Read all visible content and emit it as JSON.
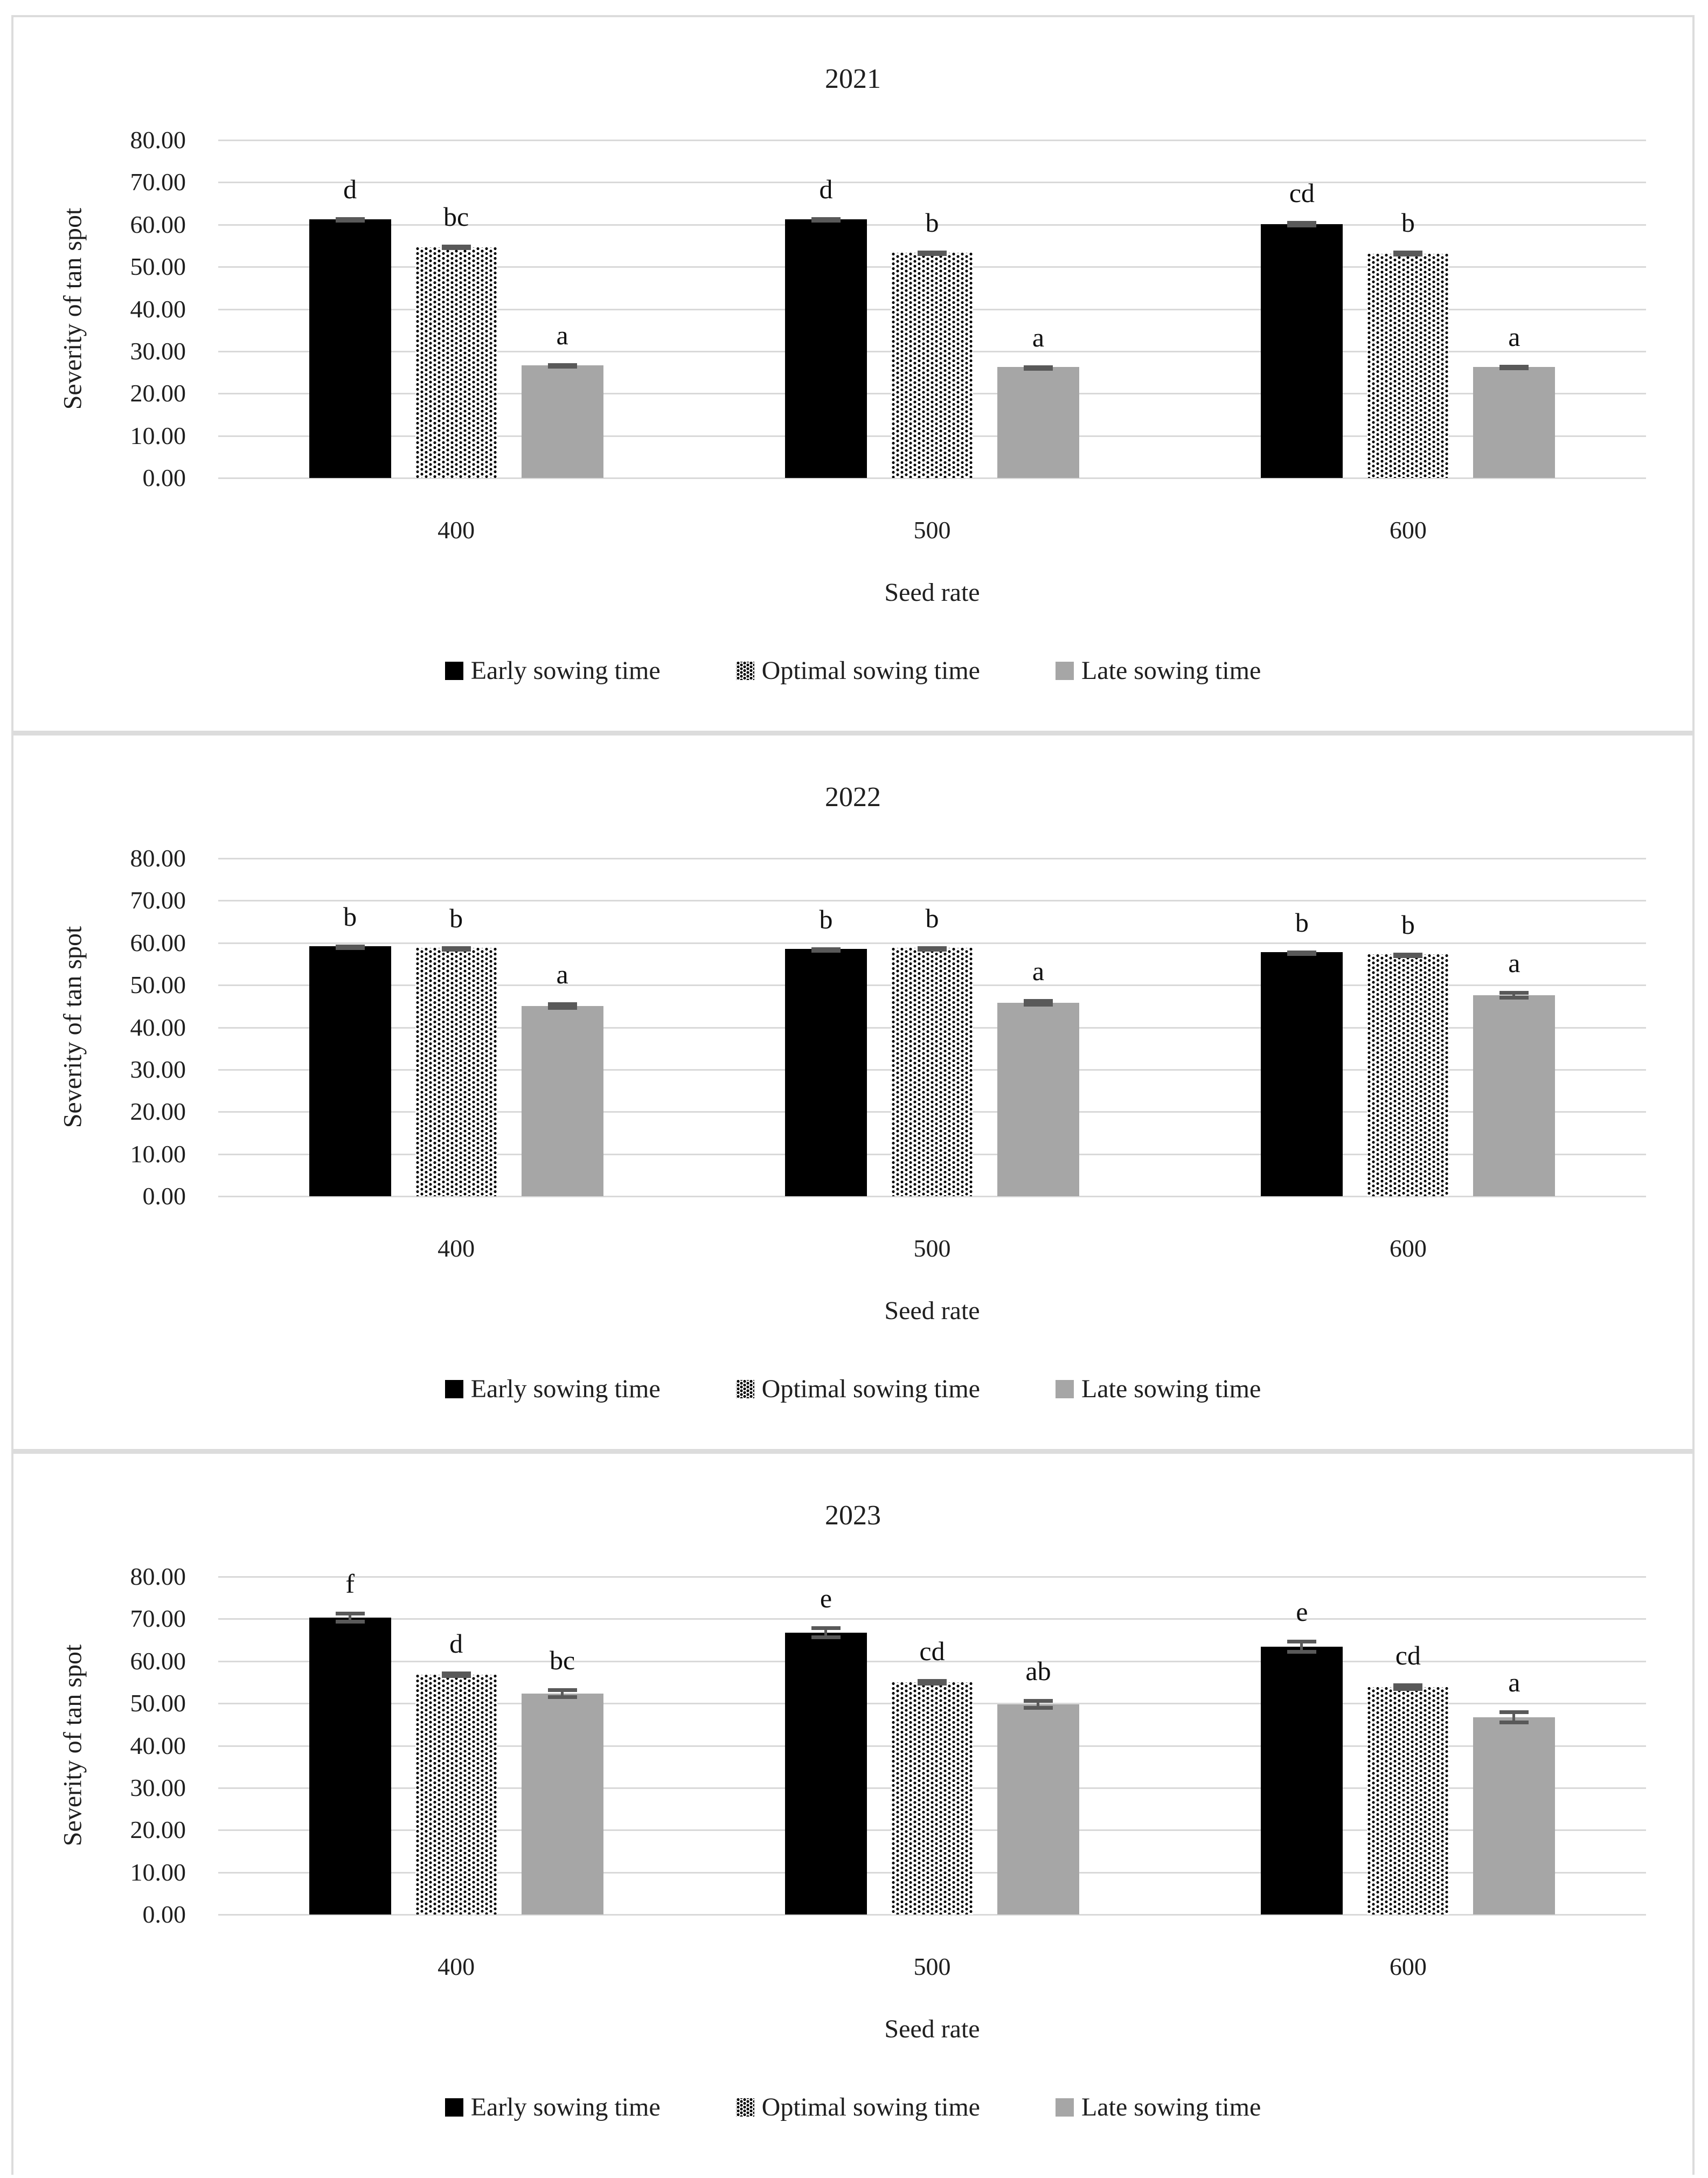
{
  "figure": {
    "background": "#ffffff",
    "border_color": "#dcdcdc",
    "gridline_color": "#d9d9d9",
    "error_bar_color": "#595959",
    "text_color": "#1f1f1f",
    "series_styles": {
      "early": {
        "label": "Early sowing time",
        "fill": "#000000",
        "pattern": "solid"
      },
      "optimal": {
        "label": "Optimal sowing time",
        "fill": "#ffffff",
        "pattern": "black-dots"
      },
      "late": {
        "label": "Late sowing time",
        "fill": "#a6a6a6",
        "pattern": "solid"
      }
    }
  },
  "chart_data": [
    {
      "type": "bar",
      "title": "2021",
      "xlabel": "Seed rate",
      "ylabel": "Severity of tan spot",
      "ylim": [
        0,
        80
      ],
      "grid": true,
      "legend_position": "bottom",
      "yticks": [
        "80.00",
        "70.00",
        "60.00",
        "50.00",
        "40.00",
        "30.00",
        "20.00",
        "10.00",
        "0.00"
      ],
      "categories": [
        "400",
        "500",
        "600"
      ],
      "series": [
        {
          "key": "early",
          "name": "Early sowing time",
          "values": [
            61.3,
            61.2,
            60.1
          ],
          "errors": [
            0.5,
            0.5,
            0.8
          ],
          "letters": [
            "d",
            "d",
            "cd"
          ]
        },
        {
          "key": "optimal",
          "name": "Optimal sowing time",
          "values": [
            54.6,
            53.3,
            53.1
          ],
          "errors": [
            0.6,
            0.6,
            0.7
          ],
          "letters": [
            "bc",
            "b",
            "b"
          ]
        },
        {
          "key": "late",
          "name": "Late sowing time",
          "values": [
            26.7,
            26.3,
            26.3
          ],
          "errors": [
            0.5,
            0.4,
            0.5
          ],
          "letters": [
            "a",
            "a",
            "a"
          ]
        }
      ],
      "legend": [
        "Early sowing time",
        "Optimal sowing time",
        "Late sowing time"
      ]
    },
    {
      "type": "bar",
      "title": "2022",
      "xlabel": "Seed rate",
      "ylabel": "Severity of tan spot",
      "ylim": [
        0,
        80
      ],
      "grid": true,
      "legend_position": "bottom",
      "yticks": [
        "80.00",
        "70.00",
        "60.00",
        "50.00",
        "40.00",
        "30.00",
        "20.00",
        "10.00",
        "0.00"
      ],
      "categories": [
        "400",
        "500",
        "600"
      ],
      "series": [
        {
          "key": "early",
          "name": "Early sowing time",
          "values": [
            59.2,
            58.6,
            57.8
          ],
          "errors": [
            0.4,
            0.4,
            0.4
          ],
          "letters": [
            "b",
            "b",
            "b"
          ]
        },
        {
          "key": "optimal",
          "name": "Optimal sowing time",
          "values": [
            58.8,
            58.8,
            57.3
          ],
          "errors": [
            0.4,
            0.4,
            0.4
          ],
          "letters": [
            "b",
            "b",
            "b"
          ]
        },
        {
          "key": "late",
          "name": "Late sowing time",
          "values": [
            45.0,
            45.8,
            47.6
          ],
          "errors": [
            0.9,
            0.9,
            1.0
          ],
          "letters": [
            "a",
            "a",
            "a"
          ]
        }
      ],
      "legend": [
        "Early sowing time",
        "Optimal sowing time",
        "Late sowing time"
      ]
    },
    {
      "type": "bar",
      "title": "2023",
      "xlabel": "Seed rate",
      "ylabel": "Severity of tan spot",
      "ylim": [
        0,
        80
      ],
      "grid": true,
      "legend_position": "bottom",
      "yticks": [
        "80.00",
        "70.00",
        "60.00",
        "50.00",
        "40.00",
        "30.00",
        "20.00",
        "10.00",
        "0.00"
      ],
      "categories": [
        "400",
        "500",
        "600"
      ],
      "series": [
        {
          "key": "early",
          "name": "Early sowing time",
          "values": [
            70.3,
            66.7,
            63.4
          ],
          "errors": [
            1.4,
            1.5,
            1.7
          ],
          "letters": [
            "f",
            "e",
            "e"
          ]
        },
        {
          "key": "optimal",
          "name": "Optimal sowing time",
          "values": [
            56.8,
            55.0,
            53.8
          ],
          "errors": [
            0.8,
            0.8,
            0.9
          ],
          "letters": [
            "d",
            "cd",
            "cd"
          ]
        },
        {
          "key": "late",
          "name": "Late sowing time",
          "values": [
            52.3,
            49.8,
            46.7
          ],
          "errors": [
            1.3,
            1.3,
            1.6
          ],
          "letters": [
            "bc",
            "ab",
            "a"
          ]
        }
      ],
      "legend": [
        "Early sowing time",
        "Optimal sowing time",
        "Late sowing time"
      ]
    }
  ]
}
